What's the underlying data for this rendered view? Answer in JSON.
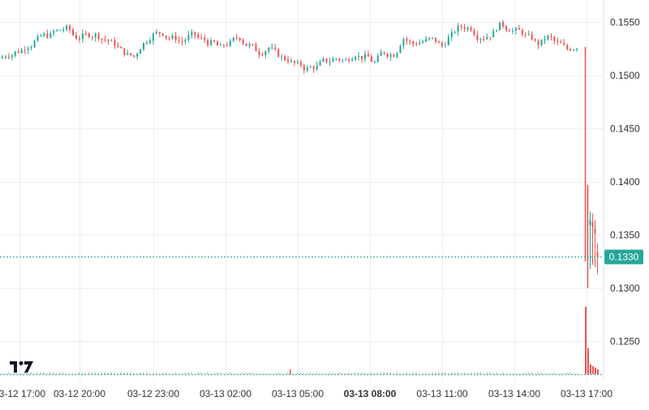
{
  "chart_data": {
    "type": "candlestick",
    "timeframe": "5m",
    "y_axis": {
      "range": [
        0.1212,
        0.1571
      ],
      "ticks": [
        "0.1550",
        "0.1500",
        "0.1450",
        "0.1400",
        "0.1350",
        "0.1300",
        "0.1250"
      ],
      "position": "right"
    },
    "x_axis": {
      "ticks": [
        "03-12 17:00",
        "03-12 20:00",
        "03-12 23:00",
        "03-13 02:00",
        "03-13 05:00",
        "03-13 08:00",
        "03-13 11:00",
        "03-13 14:00",
        "03-13 17:00"
      ],
      "highlighted_tick": "03-13 08:00"
    },
    "last_price": {
      "label": "0.1330",
      "value": 0.133
    },
    "volume_baseline": 0.1219,
    "grid": true,
    "logo": "TV",
    "colors": {
      "up": "#26a69a",
      "down": "#ef5350",
      "last_price": "#26a69a",
      "grid": "#eeeeee",
      "axis_text": "#333333"
    },
    "series": [
      {
        "values": [
          0.152,
          0.1523,
          0.1528,
          0.1534,
          0.1538,
          0.1542,
          0.1544,
          0.1536,
          0.1538,
          0.1538,
          0.1534,
          0.153,
          0.1522,
          0.1518,
          0.153,
          0.1538,
          0.154,
          0.1535,
          0.1532,
          0.1538,
          0.1534,
          0.153,
          0.1526,
          0.153,
          0.1536,
          0.1528,
          0.1522,
          0.1526,
          0.152,
          0.1515,
          0.151,
          0.1506,
          0.1508,
          0.1514,
          0.1516,
          0.1514,
          0.152,
          0.1517,
          0.1512,
          0.1522,
          0.152,
          0.1535,
          0.153,
          0.1532,
          0.1534,
          0.1528,
          0.1538,
          0.1546,
          0.1545,
          0.1536,
          0.1538,
          0.1547,
          0.1544,
          0.1542,
          0.1536,
          0.153,
          0.1536,
          0.153,
          0.1525,
          0.1527
        ]
      }
    ],
    "crash": {
      "x_time": "03-13 17:00",
      "prior_close": 0.1527,
      "low": 0.13,
      "close": 0.133
    }
  }
}
